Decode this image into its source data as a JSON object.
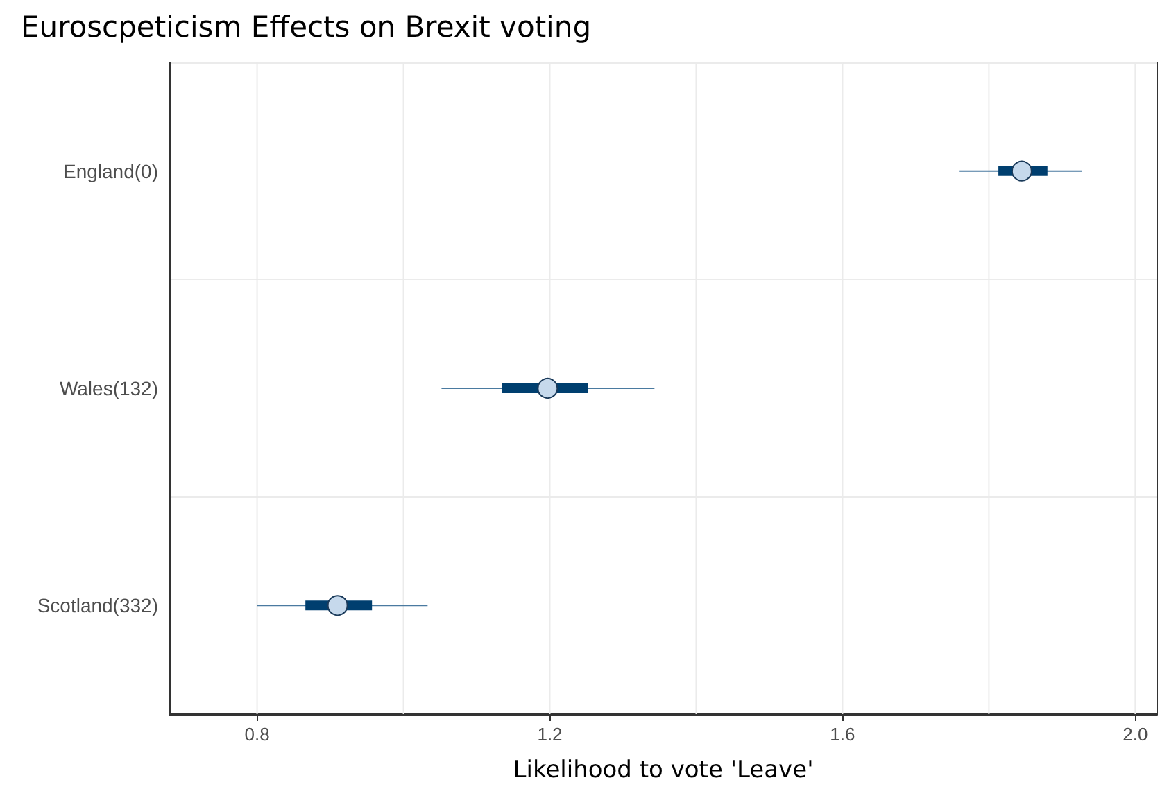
{
  "chart_data": {
    "type": "scatter",
    "title": "Euroscpeticism Effects on Brexit voting",
    "xlabel": "Likelihood to vote 'Leave'",
    "orientation": "horizontal",
    "categories": [
      "England(0)",
      "Wales(132)",
      "Scotland(332)"
    ],
    "series": [
      {
        "type": "bar",
        "color": "#003f6f",
        "base": [
          1.813,
          1.135,
          0.866
        ],
        "values": [
          0.067,
          0.117,
          0.091
        ]
      },
      {
        "color": "#c6d9ec",
        "values": [
          1.845,
          1.197,
          0.91
        ],
        "errors": [
          [
            1.76,
            1.927
          ],
          [
            1.052,
            1.343
          ],
          [
            0.8,
            1.033
          ]
        ]
      }
    ],
    "xlim": [
      0.68,
      2.03
    ],
    "xticks": [
      0.8,
      {
        "value": 1.0,
        "label": null
      },
      1.2,
      {
        "value": 1.4,
        "label": null
      },
      1.6,
      {
        "value": 1.8,
        "label": null
      },
      {
        "value": 2,
        "label": "2.0"
      }
    ],
    "grid": true,
    "marker": "circle"
  }
}
